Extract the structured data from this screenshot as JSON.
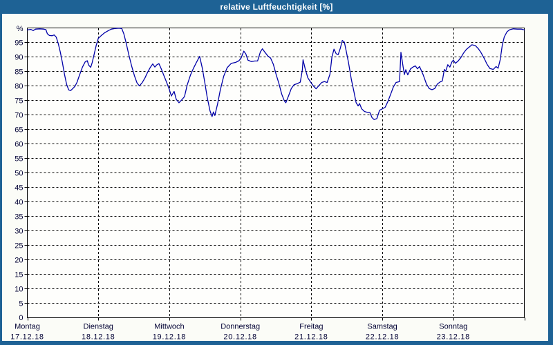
{
  "window": {
    "title": "relative Luftfeuchtigkeit [%]"
  },
  "colors": {
    "titlebar": "#1e6295",
    "window_border": "#1e6295",
    "page_bg": "#fbfcf7",
    "plot_bg": "#fefefc",
    "grid": "#000000",
    "label": "#000033",
    "line": "#0000a8"
  },
  "chart_data": {
    "type": "line",
    "title": "relative Luftfeuchtigkeit [%]",
    "ylabel": "relative Luftfeuchtigkeit",
    "y_unit": "%",
    "ylim": [
      0,
      100
    ],
    "ytick_step": 5,
    "y_top_label": "%",
    "y_bottom_label": "0",
    "grid": "dashed",
    "legend_position": "none",
    "x_days": [
      {
        "name": "Montag",
        "date": "17.12.18"
      },
      {
        "name": "Dienstag",
        "date": "18.12.18"
      },
      {
        "name": "Mittwoch",
        "date": "19.12.18"
      },
      {
        "name": "Donnerstag",
        "date": "20.12.18"
      },
      {
        "name": "Freitag",
        "date": "21.12.18"
      },
      {
        "name": "Samstag",
        "date": "22.12.18"
      },
      {
        "name": "Sonntag",
        "date": "23.12.18"
      }
    ],
    "series": [
      {
        "name": "relative Luftfeuchtigkeit [%]",
        "x_unit": "days_since_2018-12-17_00:00",
        "points": [
          [
            0.0,
            99.3
          ],
          [
            0.049,
            99.5
          ],
          [
            0.083,
            99.1
          ],
          [
            0.117,
            99.6
          ],
          [
            0.175,
            99.7
          ],
          [
            0.233,
            99.6
          ],
          [
            0.262,
            99.4
          ],
          [
            0.282,
            98.0
          ],
          [
            0.311,
            97.4
          ],
          [
            0.35,
            97.3
          ],
          [
            0.379,
            97.6
          ],
          [
            0.408,
            96.8
          ],
          [
            0.437,
            94.5
          ],
          [
            0.466,
            91.5
          ],
          [
            0.495,
            88.0
          ],
          [
            0.524,
            84.0
          ],
          [
            0.553,
            80.6
          ],
          [
            0.583,
            78.6
          ],
          [
            0.612,
            78.4
          ],
          [
            0.641,
            79.1
          ],
          [
            0.67,
            79.8
          ],
          [
            0.699,
            81.2
          ],
          [
            0.738,
            83.9
          ],
          [
            0.777,
            86.5
          ],
          [
            0.816,
            88.3
          ],
          [
            0.845,
            88.7
          ],
          [
            0.864,
            87.2
          ],
          [
            0.893,
            86.4
          ],
          [
            0.913,
            88.0
          ],
          [
            0.942,
            91.0
          ],
          [
            0.971,
            94.0
          ],
          [
            1.0,
            96.4
          ],
          [
            1.039,
            97.3
          ],
          [
            1.087,
            98.3
          ],
          [
            1.136,
            99.0
          ],
          [
            1.184,
            99.6
          ],
          [
            1.233,
            99.8
          ],
          [
            1.291,
            99.9
          ],
          [
            1.33,
            99.8
          ],
          [
            1.359,
            98.0
          ],
          [
            1.392,
            94.8
          ],
          [
            1.431,
            90.6
          ],
          [
            1.47,
            86.8
          ],
          [
            1.509,
            83.5
          ],
          [
            1.544,
            81.1
          ],
          [
            1.578,
            80.0
          ],
          [
            1.617,
            81.1
          ],
          [
            1.656,
            82.7
          ],
          [
            1.694,
            84.7
          ],
          [
            1.733,
            86.4
          ],
          [
            1.767,
            87.6
          ],
          [
            1.796,
            86.5
          ],
          [
            1.825,
            87.3
          ],
          [
            1.854,
            87.7
          ],
          [
            1.883,
            86.1
          ],
          [
            1.922,
            83.7
          ],
          [
            1.961,
            81.3
          ],
          [
            2.0,
            78.8
          ],
          [
            2.029,
            76.5
          ],
          [
            2.068,
            78.1
          ],
          [
            2.097,
            75.4
          ],
          [
            2.136,
            74.2
          ],
          [
            2.175,
            75.2
          ],
          [
            2.214,
            76.3
          ],
          [
            2.252,
            80.3
          ],
          [
            2.301,
            83.9
          ],
          [
            2.34,
            86.1
          ],
          [
            2.379,
            88.0
          ],
          [
            2.427,
            90.2
          ],
          [
            2.466,
            86.0
          ],
          [
            2.505,
            80.4
          ],
          [
            2.534,
            76.0
          ],
          [
            2.573,
            71.4
          ],
          [
            2.602,
            69.4
          ],
          [
            2.621,
            71.0
          ],
          [
            2.641,
            69.8
          ],
          [
            2.68,
            73.8
          ],
          [
            2.718,
            78.6
          ],
          [
            2.767,
            83.4
          ],
          [
            2.816,
            86.3
          ],
          [
            2.874,
            87.8
          ],
          [
            2.932,
            88.1
          ],
          [
            2.981,
            88.7
          ],
          [
            3.01,
            89.6
          ],
          [
            3.049,
            92.0
          ],
          [
            3.078,
            91.0
          ],
          [
            3.107,
            88.9
          ],
          [
            3.155,
            88.4
          ],
          [
            3.204,
            88.6
          ],
          [
            3.243,
            88.6
          ],
          [
            3.282,
            91.7
          ],
          [
            3.311,
            92.8
          ],
          [
            3.35,
            91.5
          ],
          [
            3.388,
            90.3
          ],
          [
            3.427,
            89.6
          ],
          [
            3.466,
            87.4
          ],
          [
            3.505,
            83.9
          ],
          [
            3.544,
            80.8
          ],
          [
            3.583,
            77.2
          ],
          [
            3.621,
            74.8
          ],
          [
            3.641,
            74.2
          ],
          [
            3.68,
            76.6
          ],
          [
            3.718,
            79.1
          ],
          [
            3.757,
            80.4
          ],
          [
            3.806,
            80.8
          ],
          [
            3.845,
            81.3
          ],
          [
            3.874,
            85.5
          ],
          [
            3.884,
            89.0
          ],
          [
            3.913,
            86.0
          ],
          [
            3.951,
            82.8
          ],
          [
            3.99,
            81.3
          ],
          [
            4.029,
            80.0
          ],
          [
            4.068,
            79.0
          ],
          [
            4.107,
            80.1
          ],
          [
            4.146,
            81.2
          ],
          [
            4.184,
            81.5
          ],
          [
            4.223,
            81.2
          ],
          [
            4.262,
            84.0
          ],
          [
            4.291,
            90.0
          ],
          [
            4.32,
            92.7
          ],
          [
            4.35,
            91.1
          ],
          [
            4.379,
            90.8
          ],
          [
            4.408,
            93.0
          ],
          [
            4.437,
            95.7
          ],
          [
            4.466,
            95.1
          ],
          [
            4.495,
            91.6
          ],
          [
            4.524,
            88.0
          ],
          [
            4.563,
            82.3
          ],
          [
            4.602,
            77.8
          ],
          [
            4.631,
            74.2
          ],
          [
            4.66,
            73.1
          ],
          [
            4.68,
            73.9
          ],
          [
            4.709,
            72.1
          ],
          [
            4.748,
            71.2
          ],
          [
            4.786,
            70.9
          ],
          [
            4.825,
            70.8
          ],
          [
            4.854,
            69.1
          ],
          [
            4.883,
            68.4
          ],
          [
            4.922,
            68.7
          ],
          [
            4.961,
            71.6
          ],
          [
            5.0,
            72.1
          ],
          [
            5.039,
            72.6
          ],
          [
            5.078,
            74.6
          ],
          [
            5.117,
            77.1
          ],
          [
            5.155,
            79.6
          ],
          [
            5.194,
            81.2
          ],
          [
            5.243,
            81.5
          ],
          [
            5.262,
            91.6
          ],
          [
            5.291,
            86.8
          ],
          [
            5.311,
            83.9
          ],
          [
            5.33,
            85.6
          ],
          [
            5.359,
            83.8
          ],
          [
            5.398,
            85.9
          ],
          [
            5.437,
            86.6
          ],
          [
            5.466,
            86.9
          ],
          [
            5.495,
            85.9
          ],
          [
            5.524,
            86.7
          ],
          [
            5.573,
            84.0
          ],
          [
            5.621,
            80.7
          ],
          [
            5.66,
            79.1
          ],
          [
            5.699,
            78.7
          ],
          [
            5.738,
            79.1
          ],
          [
            5.777,
            80.7
          ],
          [
            5.816,
            81.4
          ],
          [
            5.845,
            81.7
          ],
          [
            5.874,
            85.7
          ],
          [
            5.893,
            85.1
          ],
          [
            5.922,
            87.3
          ],
          [
            5.951,
            86.5
          ],
          [
            5.981,
            88.3
          ],
          [
            6.0,
            88.9
          ],
          [
            6.029,
            87.8
          ],
          [
            6.068,
            88.6
          ],
          [
            6.107,
            89.8
          ],
          [
            6.146,
            91.4
          ],
          [
            6.184,
            92.6
          ],
          [
            6.223,
            93.4
          ],
          [
            6.262,
            94.2
          ],
          [
            6.311,
            93.9
          ],
          [
            6.35,
            92.9
          ],
          [
            6.388,
            91.6
          ],
          [
            6.437,
            89.4
          ],
          [
            6.476,
            87.4
          ],
          [
            6.515,
            86.0
          ],
          [
            6.563,
            85.7
          ],
          [
            6.602,
            86.7
          ],
          [
            6.631,
            86.1
          ],
          [
            6.66,
            89.0
          ],
          [
            6.689,
            94.0
          ],
          [
            6.718,
            96.9
          ],
          [
            6.757,
            98.7
          ],
          [
            6.796,
            99.4
          ],
          [
            6.845,
            99.7
          ],
          [
            6.903,
            99.6
          ],
          [
            6.961,
            99.6
          ],
          [
            7.0,
            99.3
          ]
        ]
      }
    ]
  }
}
